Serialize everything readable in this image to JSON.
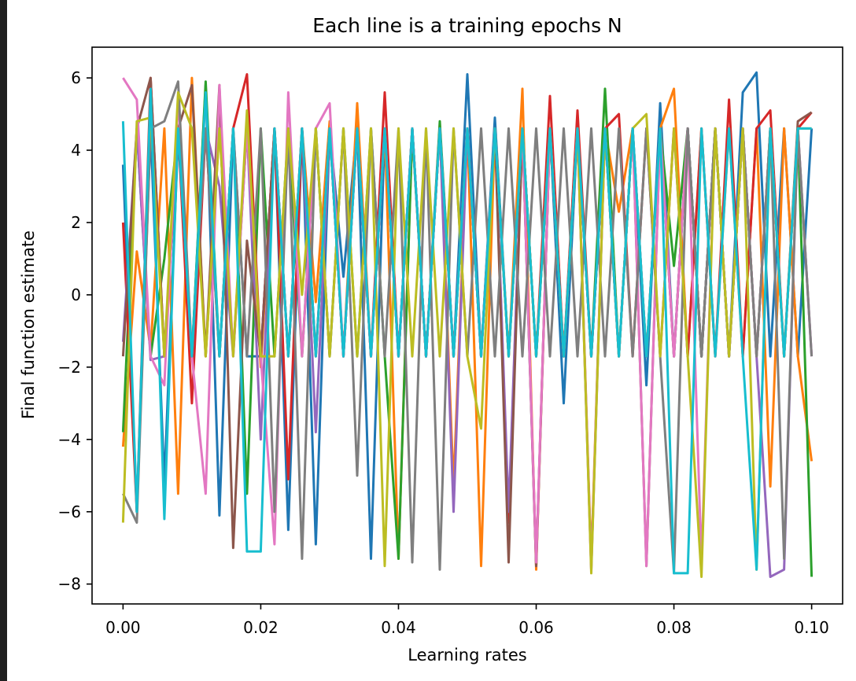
{
  "chart_data": {
    "type": "line",
    "title": "Each line is a training epochs N",
    "xlabel": "Learning rates",
    "ylabel": "Final function estimate",
    "xlim": [
      -0.0045,
      0.1045
    ],
    "ylim": [
      -8.55,
      6.85
    ],
    "xticks": [
      0.0,
      0.02,
      0.04,
      0.06,
      0.08,
      0.1
    ],
    "xtick_labels": [
      "0.00",
      "0.02",
      "0.04",
      "0.06",
      "0.08",
      "0.10"
    ],
    "yticks": [
      6,
      4,
      2,
      0,
      -2,
      -4,
      -6,
      -8
    ],
    "ytick_labels": [
      "6",
      "4",
      "2",
      "0",
      "−2",
      "−4",
      "−6",
      "−8"
    ],
    "grid": false,
    "legend": "none",
    "x": [
      0.0,
      0.002,
      0.004,
      0.006,
      0.008,
      0.01,
      0.012,
      0.014,
      0.016,
      0.018,
      0.02,
      0.022,
      0.024,
      0.026,
      0.028,
      0.03,
      0.032,
      0.034,
      0.036,
      0.038,
      0.04,
      0.042,
      0.044,
      0.046,
      0.048,
      0.05,
      0.052,
      0.054,
      0.056,
      0.058,
      0.06,
      0.062,
      0.064,
      0.066,
      0.068,
      0.07,
      0.072,
      0.074,
      0.076,
      0.078,
      0.08,
      0.082,
      0.084,
      0.086,
      0.088,
      0.09,
      0.092,
      0.094,
      0.096,
      0.098,
      0.1
    ],
    "series": [
      {
        "color": "#1f77b4",
        "values": [
          3.6,
          -6.0,
          4.6,
          -5.2,
          4.4,
          -1.7,
          5.8,
          -6.1,
          4.6,
          -1.7,
          -1.7,
          4.6,
          -6.5,
          4.6,
          -6.9,
          4.6,
          0.5,
          4.7,
          -7.3,
          4.6,
          -1.7,
          4.6,
          -1.7,
          4.6,
          -1.7,
          6.1,
          -1.7,
          4.9,
          -1.7,
          4.6,
          -1.7,
          4.6,
          -3.0,
          4.6,
          -1.7,
          4.6,
          -1.7,
          4.6,
          -2.5,
          5.3,
          -1.7,
          4.6,
          -1.7,
          4.6,
          -1.7,
          5.6,
          6.15,
          -1.7,
          4.6,
          -1.7,
          4.6
        ]
      },
      {
        "color": "#ff7f0e",
        "values": [
          -4.2,
          1.2,
          -1.5,
          4.6,
          -5.5,
          6.0,
          -1.7,
          4.6,
          -1.6,
          4.6,
          -2.0,
          4.6,
          -1.7,
          4.6,
          -0.2,
          4.8,
          -1.7,
          5.3,
          -1.7,
          4.6,
          -7.3,
          4.6,
          -1.7,
          4.6,
          -5.3,
          4.6,
          -7.5,
          4.6,
          -1.7,
          5.7,
          -7.6,
          4.6,
          -1.7,
          4.6,
          -7.4,
          4.6,
          2.3,
          4.6,
          -1.7,
          4.6,
          5.7,
          -1.7,
          4.6,
          -1.7,
          4.6,
          -1.7,
          4.6,
          -5.3,
          4.6,
          -1.7,
          -4.6
        ]
      },
      {
        "color": "#2ca02c",
        "values": [
          -3.8,
          4.6,
          -1.7,
          1.0,
          4.6,
          -1.7,
          5.9,
          -1.7,
          4.6,
          -5.5,
          4.6,
          -1.7,
          4.6,
          -1.7,
          4.6,
          -1.7,
          4.6,
          -1.7,
          4.6,
          -1.7,
          -7.3,
          4.5,
          -1.7,
          4.8,
          -1.7,
          4.6,
          -1.7,
          4.6,
          -1.7,
          4.6,
          -1.7,
          4.6,
          -1.7,
          4.6,
          -1.7,
          5.7,
          -1.7,
          4.6,
          -1.7,
          4.6,
          0.8,
          4.6,
          -1.7,
          4.6,
          -1.7,
          4.6,
          -1.7,
          4.6,
          -1.7,
          4.6,
          -7.8
        ]
      },
      {
        "color": "#d62728",
        "values": [
          2.0,
          -6.0,
          6.0,
          -1.7,
          4.6,
          -3.0,
          4.6,
          -1.7,
          4.6,
          6.1,
          -1.7,
          4.6,
          -5.1,
          4.6,
          -1.7,
          4.6,
          -1.7,
          4.6,
          -1.7,
          5.6,
          -1.7,
          4.6,
          -1.7,
          4.6,
          -1.7,
          4.6,
          -1.7,
          4.6,
          -6.3,
          4.6,
          -1.7,
          5.5,
          -1.7,
          5.1,
          -1.7,
          4.6,
          5.0,
          -1.7,
          4.6,
          -1.7,
          4.6,
          -1.7,
          4.6,
          -1.7,
          5.4,
          -1.7,
          4.6,
          5.1,
          -1.7,
          4.6,
          5.05
        ]
      },
      {
        "color": "#9467bd",
        "values": [
          -1.3,
          4.6,
          -1.8,
          -1.7,
          4.6,
          -1.7,
          4.6,
          3.0,
          -1.7,
          4.6,
          -4.0,
          4.6,
          -1.7,
          4.6,
          -3.8,
          4.6,
          -1.7,
          4.6,
          -1.7,
          4.6,
          -1.7,
          4.6,
          -1.7,
          4.6,
          -6.0,
          4.6,
          -1.7,
          4.6,
          -6.0,
          4.6,
          -7.5,
          4.6,
          -1.7,
          4.6,
          -7.6,
          4.6,
          -1.7,
          4.6,
          -1.7,
          4.6,
          -1.7,
          4.6,
          -1.7,
          4.6,
          -1.7,
          4.6,
          -1.7,
          -7.8,
          -7.6,
          4.6,
          -1.7
        ]
      },
      {
        "color": "#8c564b",
        "values": [
          -1.7,
          4.6,
          6.0,
          -1.7,
          4.6,
          5.8,
          -1.7,
          5.8,
          -7.0,
          1.5,
          -1.7,
          4.6,
          -1.7,
          4.6,
          -1.7,
          4.6,
          -1.7,
          4.6,
          -1.7,
          4.6,
          -1.7,
          4.6,
          -1.7,
          4.6,
          -1.7,
          4.6,
          -1.7,
          4.6,
          -7.4,
          4.6,
          -7.5,
          4.6,
          -1.7,
          4.6,
          -1.7,
          4.6,
          -1.7,
          4.6,
          -7.5,
          4.6,
          -1.7,
          4.6,
          -1.7,
          4.6,
          -1.7,
          4.6,
          -1.7,
          4.6,
          -1.7,
          4.8,
          5.05
        ]
      },
      {
        "color": "#e377c2",
        "values": [
          6.0,
          5.4,
          -1.7,
          -2.5,
          5.5,
          -1.7,
          -5.5,
          5.8,
          -1.7,
          4.6,
          -1.7,
          -6.9,
          5.6,
          -1.7,
          4.6,
          5.3,
          -1.7,
          4.6,
          -1.7,
          4.6,
          -1.7,
          4.6,
          -1.7,
          4.6,
          -1.7,
          4.6,
          -1.7,
          4.6,
          -1.7,
          4.6,
          -7.4,
          4.6,
          -1.7,
          4.6,
          -7.6,
          4.6,
          -1.7,
          4.6,
          -7.5,
          4.6,
          -1.7,
          4.6,
          -7.4,
          4.6,
          -1.7,
          4.6,
          -1.7,
          4.6,
          -1.7,
          4.6,
          -1.7
        ]
      },
      {
        "color": "#7f7f7f",
        "values": [
          -5.5,
          -6.3,
          4.6,
          4.8,
          5.9,
          -1.7,
          4.6,
          -1.7,
          4.6,
          -1.7,
          4.6,
          -6.0,
          4.6,
          -7.3,
          4.6,
          -1.7,
          4.6,
          -5.0,
          4.6,
          -1.7,
          4.6,
          -7.4,
          4.6,
          -7.6,
          4.6,
          -1.7,
          4.6,
          -1.7,
          4.6,
          -1.7,
          4.6,
          -1.7,
          4.6,
          -1.7,
          4.6,
          -1.7,
          4.6,
          -1.7,
          4.6,
          -1.7,
          -7.7,
          4.6,
          -1.7,
          4.6,
          -1.7,
          4.6,
          -1.7,
          4.6,
          -7.3,
          4.6,
          -1.7
        ]
      },
      {
        "color": "#bcbd22",
        "values": [
          -6.3,
          4.8,
          4.9,
          -1.7,
          5.6,
          4.6,
          -1.7,
          4.6,
          -1.7,
          5.1,
          -1.7,
          -1.7,
          4.6,
          0.0,
          4.6,
          -1.7,
          4.6,
          -1.7,
          4.6,
          -7.5,
          4.6,
          -1.7,
          4.6,
          -1.7,
          4.6,
          -1.7,
          -3.7,
          4.6,
          -1.7,
          4.6,
          -1.7,
          4.6,
          -1.7,
          4.6,
          -7.7,
          4.6,
          -1.7,
          4.6,
          5.0,
          -1.7,
          4.6,
          -1.7,
          -7.8,
          4.6,
          -1.7,
          4.6,
          -7.6,
          4.6,
          -1.7,
          4.6,
          4.6
        ]
      },
      {
        "color": "#17becf",
        "values": [
          4.8,
          -6.0,
          5.7,
          -6.2,
          4.6,
          -1.7,
          5.6,
          -1.7,
          4.6,
          -7.1,
          -7.1,
          4.6,
          -1.7,
          4.6,
          -1.7,
          4.6,
          -1.7,
          4.6,
          -1.7,
          4.6,
          -1.7,
          4.6,
          -1.7,
          4.6,
          -1.7,
          4.6,
          -1.7,
          4.6,
          -1.7,
          4.6,
          -1.7,
          4.6,
          -1.7,
          4.6,
          -1.7,
          4.6,
          -1.7,
          4.6,
          -1.7,
          4.6,
          -7.7,
          -7.7,
          4.6,
          -1.7,
          4.6,
          -1.7,
          -7.6,
          4.6,
          -1.7,
          4.6,
          4.6
        ]
      }
    ]
  }
}
